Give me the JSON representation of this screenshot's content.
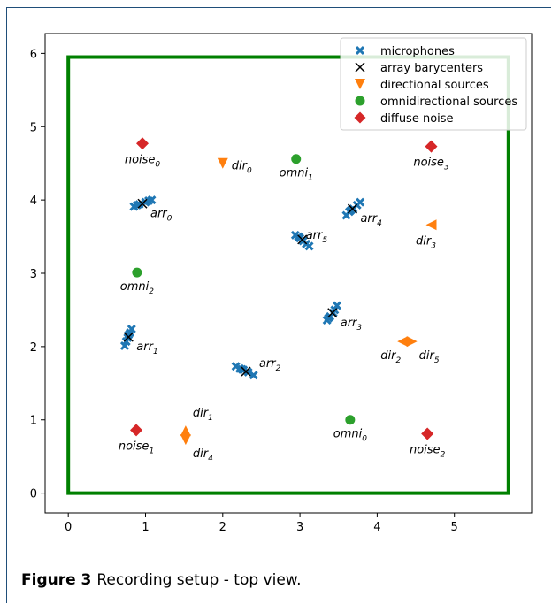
{
  "chart_data": {
    "type": "scatter",
    "title": "",
    "xlabel": "",
    "ylabel": "",
    "xlim": [
      -0.3,
      6.0
    ],
    "ylim": [
      -0.27,
      6.27
    ],
    "xticks": [
      0,
      1,
      2,
      3,
      4,
      5
    ],
    "yticks": [
      0,
      1,
      2,
      3,
      4,
      5,
      6
    ],
    "grid": false,
    "legend_position": "top-right",
    "room": {
      "x": [
        0,
        5.7
      ],
      "y": [
        0,
        5.95
      ],
      "color": "#008000"
    },
    "legend": [
      {
        "label": "microphones",
        "marker": "X",
        "color": "#1f77b4"
      },
      {
        "label": "array barycenters",
        "marker": "x",
        "color": "#000000"
      },
      {
        "label": "directional sources",
        "marker": "v",
        "color": "#ff7f0e"
      },
      {
        "label": "omnidirectional sources",
        "marker": "o",
        "color": "#2ca02c"
      },
      {
        "label": "diffuse noise",
        "marker": "D",
        "color": "#d62728"
      }
    ],
    "arrays": [
      {
        "label": "arr",
        "sub": "0",
        "center": [
          0.96,
          3.95
        ],
        "mics": [
          [
            0.85,
            3.91
          ],
          [
            0.92,
            3.94
          ],
          [
            1.0,
            3.97
          ],
          [
            1.08,
            4.0
          ],
          [
            0.89,
            3.93
          ],
          [
            1.04,
            3.99
          ]
        ]
      },
      {
        "label": "arr",
        "sub": "1",
        "center": [
          0.78,
          2.13
        ],
        "mics": [
          [
            0.73,
            2.01
          ],
          [
            0.75,
            2.07
          ],
          [
            0.77,
            2.12
          ],
          [
            0.8,
            2.19
          ],
          [
            0.82,
            2.24
          ],
          [
            0.78,
            2.16
          ]
        ]
      },
      {
        "label": "arr",
        "sub": "2",
        "center": [
          2.3,
          1.66
        ],
        "mics": [
          [
            2.17,
            1.73
          ],
          [
            2.22,
            1.7
          ],
          [
            2.27,
            1.68
          ],
          [
            2.33,
            1.65
          ],
          [
            2.4,
            1.61
          ],
          [
            2.25,
            1.69
          ]
        ]
      },
      {
        "label": "arr",
        "sub": "3",
        "center": [
          3.42,
          2.46
        ],
        "mics": [
          [
            3.35,
            2.36
          ],
          [
            3.39,
            2.41
          ],
          [
            3.43,
            2.46
          ],
          [
            3.48,
            2.56
          ],
          [
            3.45,
            2.5
          ],
          [
            3.37,
            2.39
          ]
        ]
      },
      {
        "label": "arr",
        "sub": "4",
        "center": [
          3.68,
          3.88
        ],
        "mics": [
          [
            3.6,
            3.79
          ],
          [
            3.64,
            3.84
          ],
          [
            3.69,
            3.88
          ],
          [
            3.74,
            3.93
          ],
          [
            3.78,
            3.97
          ],
          [
            3.66,
            3.86
          ]
        ]
      },
      {
        "label": "arr",
        "sub": "5",
        "center": [
          3.03,
          3.46
        ],
        "mics": [
          [
            2.94,
            3.52
          ],
          [
            3.0,
            3.48
          ],
          [
            3.04,
            3.44
          ],
          [
            3.08,
            3.4
          ],
          [
            3.12,
            3.37
          ],
          [
            2.98,
            3.5
          ]
        ]
      }
    ],
    "directional_sources": [
      {
        "label": "dir",
        "sub": "0",
        "point": [
          2.0,
          4.5
        ],
        "marker": "v"
      },
      {
        "label": "dir",
        "sub": "1",
        "point": [
          1.52,
          0.85
        ],
        "marker": "^"
      },
      {
        "label": "dir",
        "sub": "2",
        "point": [
          4.33,
          2.07
        ],
        "marker": "<"
      },
      {
        "label": "dir",
        "sub": "3",
        "point": [
          4.7,
          3.66
        ],
        "marker": "<"
      },
      {
        "label": "dir",
        "sub": "4",
        "point": [
          1.52,
          0.73
        ],
        "marker": "v"
      },
      {
        "label": "dir",
        "sub": "5",
        "point": [
          4.45,
          2.07
        ],
        "marker": ">"
      }
    ],
    "omnidirectional_sources": [
      {
        "label": "omni",
        "sub": "0",
        "point": [
          3.65,
          1.0
        ]
      },
      {
        "label": "omni",
        "sub": "1",
        "point": [
          2.95,
          4.56
        ]
      },
      {
        "label": "omni",
        "sub": "2",
        "point": [
          0.89,
          3.01
        ]
      }
    ],
    "diffuse_noise": [
      {
        "label": "noise",
        "sub": "0",
        "point": [
          0.96,
          4.77
        ]
      },
      {
        "label": "noise",
        "sub": "1",
        "point": [
          0.88,
          0.86
        ]
      },
      {
        "label": "noise",
        "sub": "2",
        "point": [
          4.65,
          0.81
        ]
      },
      {
        "label": "noise",
        "sub": "3",
        "point": [
          4.7,
          4.73
        ]
      }
    ]
  },
  "caption": {
    "label": "Figure 3",
    "text": "Recording setup - top view."
  }
}
